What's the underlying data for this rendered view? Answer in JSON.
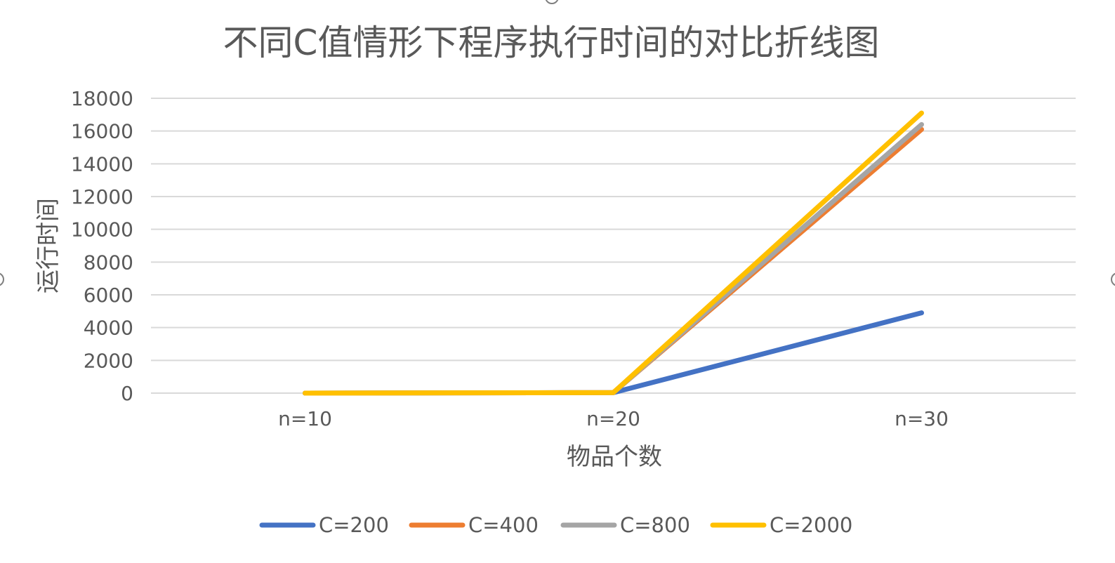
{
  "chart_data": {
    "type": "line",
    "title": "不同C值情形下程序执行时间的对比折线图",
    "xlabel": "物品个数",
    "ylabel": "运行时间",
    "categories": [
      "n=10",
      "n=20",
      "n=30"
    ],
    "ylim": [
      0,
      18000
    ],
    "yticks": [
      0,
      2000,
      4000,
      6000,
      8000,
      10000,
      12000,
      14000,
      16000,
      18000
    ],
    "grid": true,
    "legend_position": "bottom",
    "series": [
      {
        "name": "C=200",
        "color": "#4472c4",
        "values": [
          0,
          30,
          4900
        ]
      },
      {
        "name": "C=400",
        "color": "#ed7d31",
        "values": [
          0,
          30,
          16100
        ]
      },
      {
        "name": "C=800",
        "color": "#a5a5a5",
        "values": [
          0,
          30,
          16400
        ]
      },
      {
        "name": "C=2000",
        "color": "#ffc000",
        "values": [
          0,
          30,
          17100
        ]
      }
    ]
  }
}
